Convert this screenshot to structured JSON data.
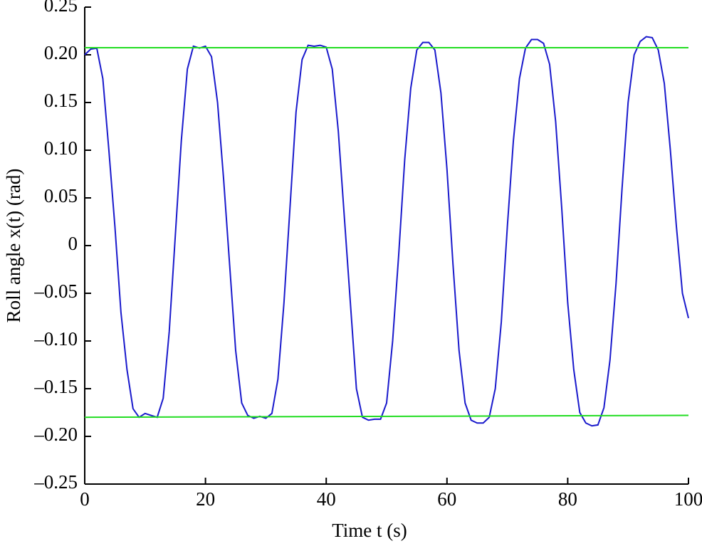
{
  "chart_data": {
    "type": "line",
    "xlabel": "Time t (s)",
    "ylabel": "Roll angle x(t) (rad)",
    "x": [
      0,
      1,
      2,
      3,
      4,
      5,
      6,
      7,
      8,
      9,
      10,
      11,
      12,
      13,
      14,
      15,
      16,
      17,
      18,
      19,
      20,
      21,
      22,
      23,
      24,
      25,
      26,
      27,
      28,
      29,
      30,
      31,
      32,
      33,
      34,
      35,
      36,
      37,
      38,
      39,
      40,
      41,
      42,
      43,
      44,
      45,
      46,
      47,
      48,
      49,
      50,
      51,
      52,
      53,
      54,
      55,
      56,
      57,
      58,
      59,
      60,
      61,
      62,
      63,
      64,
      65,
      66,
      67,
      68,
      69,
      70,
      71,
      72,
      73,
      74,
      75,
      76,
      77,
      78,
      79,
      80,
      81,
      82,
      83,
      84,
      85,
      86,
      87,
      88,
      89,
      90,
      91,
      92,
      93,
      94,
      95,
      96,
      97,
      98,
      99,
      100
    ],
    "series": [
      {
        "color": "#1a1acc",
        "values": [
          0.2,
          0.206,
          0.207,
          0.175,
          0.1,
          0.02,
          -0.07,
          -0.13,
          -0.171,
          -0.18,
          -0.176,
          -0.178,
          -0.18,
          -0.16,
          -0.09,
          0.01,
          0.11,
          0.185,
          0.209,
          0.207,
          0.209,
          0.198,
          0.15,
          0.07,
          -0.02,
          -0.11,
          -0.165,
          -0.178,
          -0.181,
          -0.179,
          -0.181,
          -0.176,
          -0.14,
          -0.06,
          0.04,
          0.14,
          0.195,
          0.21,
          0.209,
          0.21,
          0.208,
          0.185,
          0.12,
          0.03,
          -0.06,
          -0.15,
          -0.18,
          -0.183,
          -0.182,
          -0.182,
          -0.165,
          -0.1,
          -0.01,
          0.09,
          0.165,
          0.205,
          0.213,
          0.213,
          0.205,
          0.16,
          0.08,
          -0.02,
          -0.11,
          -0.165,
          -0.183,
          -0.186,
          -0.186,
          -0.18,
          -0.15,
          -0.08,
          0.02,
          0.11,
          0.175,
          0.207,
          0.216,
          0.216,
          0.212,
          0.19,
          0.13,
          0.04,
          -0.06,
          -0.13,
          -0.175,
          -0.186,
          -0.189,
          -0.188,
          -0.17,
          -0.12,
          -0.04,
          0.06,
          0.15,
          0.2,
          0.214,
          0.219,
          0.218,
          0.205,
          0.17,
          0.1,
          0.02,
          -0.05,
          -0.076
        ]
      },
      {
        "color": "#22dd22",
        "x": [
          0,
          100
        ],
        "values": [
          0.2075,
          0.2075
        ]
      },
      {
        "color": "#22dd22",
        "x": [
          0,
          100
        ],
        "values": [
          -0.18,
          -0.178
        ]
      }
    ],
    "xlim": [
      0,
      100
    ],
    "xticks": [
      0,
      20,
      40,
      60,
      80,
      100
    ],
    "ylim": [
      -0.25,
      0.25
    ],
    "yticks": [
      {
        "value": -0.25,
        "label": "–0.25"
      },
      {
        "value": -0.2,
        "label": "–0.20"
      },
      {
        "value": -0.15,
        "label": "–0.15"
      },
      {
        "value": -0.1,
        "label": "–0.10"
      },
      {
        "value": -0.05,
        "label": "–0.05"
      },
      0,
      0.05,
      {
        "value": 0.1,
        "label": "0.10"
      },
      0.15,
      {
        "value": 0.2,
        "label": "0.20"
      },
      0.25
    ]
  }
}
